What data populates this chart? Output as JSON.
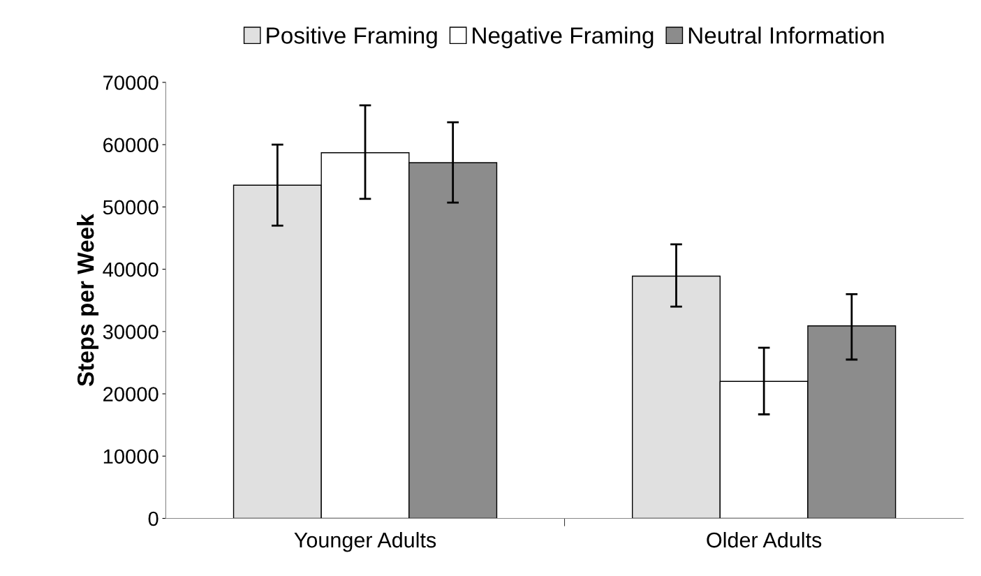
{
  "chart_data": {
    "type": "bar",
    "ylabel": "Steps per Week",
    "categories": [
      "Younger Adults",
      "Older Adults"
    ],
    "series": [
      {
        "name": "Positive Framing",
        "color": "#e0e0e0",
        "values": [
          53500,
          38900
        ],
        "errors": [
          [
            47000,
            60000
          ],
          [
            34000,
            44000
          ]
        ]
      },
      {
        "name": "Negative Framing",
        "color": "#ffffff",
        "values": [
          58700,
          22000
        ],
        "errors": [
          [
            51300,
            66300
          ],
          [
            16700,
            27400
          ]
        ]
      },
      {
        "name": "Neutral Information",
        "color": "#8c8c8c",
        "values": [
          57100,
          30900
        ],
        "errors": [
          [
            50700,
            63600
          ],
          [
            25500,
            36000
          ]
        ]
      }
    ],
    "ylim": [
      0,
      70000
    ],
    "yticks": [
      0,
      10000,
      20000,
      30000,
      40000,
      50000,
      60000,
      70000
    ],
    "grid": false,
    "legend": "top"
  }
}
